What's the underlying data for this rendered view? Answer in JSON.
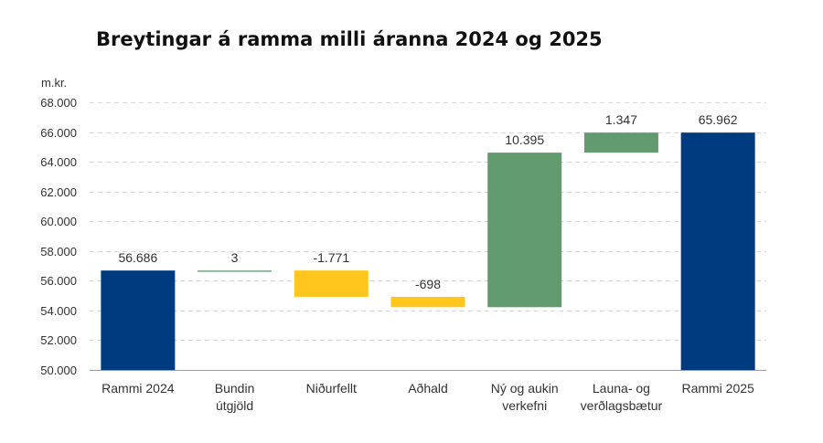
{
  "chart_data": {
    "type": "bar",
    "title": "Breytingar á ramma milli áranna 2024 og 2025",
    "unit_label": "m.kr.",
    "ylim": [
      50000,
      68000
    ],
    "y_tick_values": [
      50000,
      52000,
      54000,
      56000,
      58000,
      60000,
      62000,
      64000,
      66000,
      68000
    ],
    "y_tick_labels": [
      "50.000",
      "52.000",
      "54.000",
      "56.000",
      "58.000",
      "60.000",
      "62.000",
      "64.000",
      "66.000",
      "68.000"
    ],
    "grid": true,
    "categories": [
      [
        "Rammi 2024"
      ],
      [
        "Bundin",
        "útgjöld"
      ],
      [
        "Niðurfellt"
      ],
      [
        "Aðhald"
      ],
      [
        "Ný og aukin",
        "verkefni"
      ],
      [
        "Launa- og",
        "verðlagsbætur"
      ],
      [
        "Rammi 2025"
      ]
    ],
    "bars": [
      {
        "kind": "total",
        "start": 50000,
        "end": 56686,
        "label": "56.686",
        "color": "#003b80"
      },
      {
        "kind": "increase",
        "start": 56686,
        "end": 56689,
        "label": "3",
        "color": "#6fa382"
      },
      {
        "kind": "decrease",
        "start": 56689,
        "end": 54918,
        "label": "-1.771",
        "color": "#ffc61e"
      },
      {
        "kind": "decrease",
        "start": 54918,
        "end": 54220,
        "label": "-698",
        "color": "#ffc61e"
      },
      {
        "kind": "increase",
        "start": 54220,
        "end": 64615,
        "label": "10.395",
        "color": "#629c6e"
      },
      {
        "kind": "increase",
        "start": 64615,
        "end": 65962,
        "label": "1.347",
        "color": "#629c6e"
      },
      {
        "kind": "total",
        "start": 50000,
        "end": 65962,
        "label": "65.962",
        "color": "#003b80"
      }
    ]
  }
}
